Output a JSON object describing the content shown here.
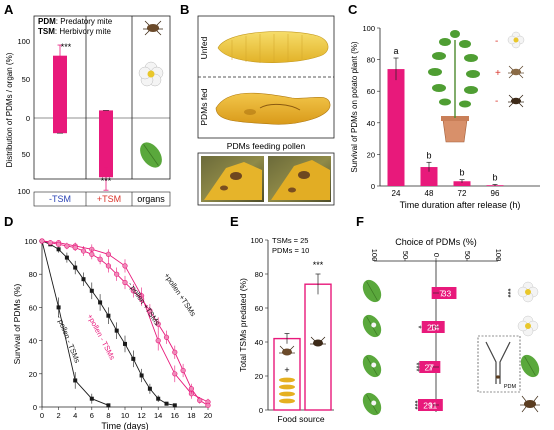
{
  "colors": {
    "magenta": "#e8197b",
    "pink_light": "#f08ab9",
    "black": "#222222",
    "blue": "#2b44b5",
    "red": "#d9342b",
    "leaf": "#5aa83c",
    "pollen": "#e5b020"
  },
  "panels": {
    "A": {
      "letter": "A"
    },
    "B": {
      "letter": "B"
    },
    "C": {
      "letter": "C"
    },
    "D": {
      "letter": "D"
    },
    "E": {
      "letter": "E"
    },
    "F": {
      "letter": "F"
    }
  },
  "panelA": {
    "legend_pdm_abbr": "PDM",
    "legend_pdm_text": ": Predatory mite",
    "legend_tsm_abbr": "TSM",
    "legend_tsm_text": ": Herbivory mite",
    "ylabel": "Distribution of PDMs / organ (%)",
    "stars_top": "***",
    "stars_bottom": "***",
    "xlabels": [
      "-TSM",
      "+TSM",
      "organs"
    ],
    "yticks": [
      "100",
      "50",
      "0",
      "50",
      "100"
    ]
  },
  "panelB": {
    "label_unfed": "Unfed",
    "label_fed": "PDMs fed",
    "caption": "PDMs feeding pollen"
  },
  "panelE": {
    "tsm_note": "TSMs = 25",
    "pdm_note": "PDMs = 10",
    "stars": "***",
    "plus": "+",
    "xlabel": "Food source"
  },
  "chart_data": [
    {
      "panel": "A",
      "type": "bar",
      "categories": [
        "-TSM",
        "+TSM"
      ],
      "series": [
        {
          "values": [
            82,
            10
          ],
          "direction": [
            "up",
            "up"
          ]
        },
        {
          "values": [
            20,
            78
          ],
          "direction": [
            "down",
            "down"
          ]
        }
      ],
      "errors": [
        [
          -20,
          68,
          96
        ],
        [
          10,
          -65,
          -95
        ]
      ],
      "ylabel": "Distribution of PDMs / organ (%)",
      "ylim": [
        -100,
        100
      ],
      "yticks": [
        100,
        50,
        0,
        50,
        100
      ]
    },
    {
      "panel": "C",
      "type": "bar",
      "categories": [
        "24",
        "48",
        "72",
        "96"
      ],
      "values": [
        74,
        12,
        3,
        0.5
      ],
      "errors": [
        7,
        3,
        1,
        0.5
      ],
      "letters": [
        "a",
        "b",
        "b",
        "b"
      ],
      "ylabel": "Survival of PDMs on potato plant (%)",
      "xlabel": "Time duration after release (h)",
      "ylim": [
        0,
        100
      ],
      "yticks": [
        0,
        20,
        40,
        60,
        80,
        100
      ],
      "legend": [
        "-",
        "+",
        "-"
      ]
    },
    {
      "panel": "D",
      "type": "line",
      "xlabel": "Time (days)",
      "ylabel": "Survival of PDMs (%)",
      "xlim": [
        0,
        20
      ],
      "ylim": [
        0,
        100
      ],
      "xticks": [
        0,
        2,
        4,
        6,
        8,
        10,
        12,
        14,
        16,
        18,
        20
      ],
      "yticks": [
        0,
        20,
        40,
        60,
        80,
        100
      ],
      "series": [
        {
          "name": "- pollen - TSMs",
          "color": "black",
          "x": [
            0,
            1,
            2,
            3,
            4
          ],
          "y": [
            100,
            60,
            16,
            5,
            1
          ],
          "err": [
            0,
            6,
            5,
            3,
            1
          ]
        },
        {
          "name": "+pollen - TSMs",
          "color": "magenta",
          "x": [
            0,
            1,
            2,
            3,
            4,
            5,
            6,
            7,
            8,
            9,
            10
          ],
          "y": [
            100,
            99,
            97,
            95,
            92,
            85,
            67,
            40,
            20,
            8,
            3
          ],
          "err": [
            0,
            1,
            2,
            3,
            3,
            4,
            5,
            6,
            5,
            3,
            2
          ]
        },
        {
          "name": "- pollen +TSMs",
          "color": "black",
          "x": [
            0,
            1,
            2,
            3,
            4,
            5,
            6,
            7,
            8,
            9,
            10,
            11,
            12,
            13,
            14,
            15,
            16
          ],
          "y": [
            100,
            98,
            95,
            90,
            84,
            77,
            70,
            63,
            55,
            46,
            38,
            29,
            19,
            11,
            5,
            2,
            1
          ],
          "err": [
            0,
            1,
            2,
            3,
            4,
            4,
            5,
            5,
            5,
            5,
            5,
            5,
            4,
            3,
            2,
            1,
            1
          ]
        },
        {
          "name": "+pollen +TSMs",
          "color": "magenta",
          "x": [
            0,
            1,
            2,
            3,
            4,
            5,
            6,
            7,
            8,
            9,
            10,
            11,
            12,
            13,
            14,
            15,
            16,
            17,
            18,
            19,
            20
          ],
          "y": [
            100,
            99,
            98,
            97,
            96,
            94,
            92,
            89,
            85,
            80,
            75,
            70,
            65,
            58,
            50,
            42,
            33,
            22,
            11,
            4,
            1
          ],
          "err": [
            0,
            1,
            1,
            2,
            2,
            3,
            3,
            3,
            4,
            4,
            4,
            4,
            4,
            4,
            4,
            4,
            4,
            4,
            3,
            2,
            1
          ]
        }
      ],
      "labels_text": [
        "- pollen - TSMs",
        "+pollen - TSMs",
        "- pollen +TSMs",
        "+pollen +TSMs"
      ]
    },
    {
      "panel": "E",
      "type": "bar",
      "categories": [
        "left",
        "right"
      ],
      "values": [
        42,
        74
      ],
      "errors": [
        3,
        6
      ],
      "ylabel": "Total TSMs predated (%)",
      "xlabel": "Food source",
      "ylim": [
        0,
        100
      ],
      "yticks": [
        0,
        20,
        40,
        60,
        80,
        100
      ]
    },
    {
      "panel": "F",
      "type": "bar",
      "title": "Choice of PDMs (%)",
      "xticks": [
        100,
        50,
        0,
        50,
        100
      ],
      "rows": [
        {
          "left": 7,
          "right": 33,
          "stars": "***",
          "stars_side": "right"
        },
        {
          "left": 23,
          "right": 14,
          "stars": "*",
          "stars_side": "left"
        },
        {
          "left": 27,
          "right": 7,
          "stars": "***",
          "stars_side": "left"
        },
        {
          "left": 29,
          "right": 11,
          "stars": "***",
          "stars_side": "left"
        }
      ],
      "inset_label": "PDM"
    }
  ]
}
